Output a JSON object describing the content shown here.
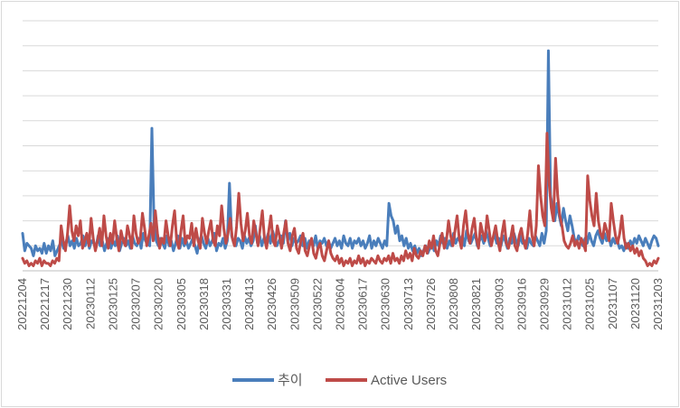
{
  "chart_data": {
    "type": "line",
    "title": "",
    "xlabel": "",
    "ylabel": "",
    "grid": true,
    "legend_position": "bottom",
    "x_tick_labels": [
      "20221204",
      "20221217",
      "20221230",
      "20230112",
      "20230125",
      "20230207",
      "20230220",
      "20230305",
      "20230318",
      "20230331",
      "20230413",
      "20230426",
      "20230509",
      "20230522",
      "20230604",
      "20230617",
      "20230630",
      "20230713",
      "20230726",
      "20230808",
      "20230821",
      "20230903",
      "20230916",
      "20230929",
      "20231012",
      "20231025",
      "20231107",
      "20231120",
      "20231203"
    ],
    "ylim": [
      0,
      100
    ],
    "gridline_count": 10,
    "series": [
      {
        "name": "추이",
        "color": "#4a7ebb",
        "values": [
          15,
          8,
          11,
          10,
          9,
          6,
          10,
          8,
          9,
          7,
          11,
          7,
          10,
          8,
          12,
          6,
          8,
          10,
          12,
          9,
          11,
          14,
          10,
          12,
          9,
          13,
          10,
          11,
          14,
          10,
          13,
          9,
          12,
          11,
          9,
          14,
          10,
          12,
          8,
          11,
          13,
          9,
          12,
          10,
          14,
          8,
          11,
          13,
          10,
          12,
          9,
          14,
          11,
          10,
          13,
          9,
          15,
          12,
          11,
          10,
          57,
          18,
          12,
          10,
          13,
          11,
          9,
          14,
          10,
          12,
          8,
          11,
          14,
          9,
          13,
          10,
          12,
          9,
          11,
          13,
          10,
          7,
          12,
          14,
          11,
          9,
          13,
          10,
          12,
          15,
          8,
          11,
          10,
          13,
          9,
          12,
          35,
          14,
          11,
          10,
          13,
          12,
          9,
          14,
          11,
          13,
          10,
          12,
          18,
          11,
          14,
          10,
          13,
          12,
          15,
          11,
          16,
          13,
          10,
          12,
          14,
          11,
          20,
          12,
          15,
          10,
          13,
          11,
          12,
          14,
          10,
          13,
          9,
          12,
          11,
          10,
          14,
          9,
          12,
          11,
          13,
          10,
          12,
          9,
          11,
          13,
          10,
          12,
          9,
          14,
          11,
          10,
          13,
          9,
          12,
          11,
          13,
          10,
          12,
          9,
          11,
          14,
          9,
          12,
          10,
          13,
          11,
          9,
          12,
          10,
          27,
          22,
          20,
          15,
          18,
          12,
          14,
          10,
          13,
          9,
          11,
          8,
          10,
          7,
          9,
          6,
          8,
          10,
          7,
          9,
          11,
          8,
          12,
          10,
          14,
          11,
          13,
          9,
          12,
          10,
          15,
          11,
          13,
          12,
          14,
          10,
          16,
          12,
          11,
          13,
          15,
          10,
          12,
          14,
          11,
          16,
          13,
          10,
          12,
          15,
          11,
          13,
          10,
          14,
          12,
          9,
          13,
          11,
          15,
          12,
          10,
          14,
          11,
          12,
          9,
          13,
          11,
          10,
          14,
          12,
          10,
          15,
          11,
          16,
          88,
          30,
          25,
          20,
          27,
          22,
          18,
          25,
          20,
          16,
          22,
          18,
          13,
          11,
          14,
          12,
          10,
          13,
          11,
          15,
          12,
          10,
          14,
          16,
          13,
          11,
          15,
          12,
          14,
          10,
          13,
          11,
          12,
          9,
          10,
          8,
          11,
          9,
          12,
          10,
          13,
          11,
          14,
          12,
          10,
          13,
          11,
          9,
          12,
          14,
          13,
          10
        ]
      },
      {
        "name": "Active Users",
        "color": "#be4b48",
        "values": [
          5,
          3,
          4,
          2,
          3,
          2,
          4,
          3,
          5,
          2,
          4,
          3,
          3,
          2,
          4,
          3,
          5,
          4,
          18,
          12,
          8,
          15,
          26,
          16,
          12,
          18,
          14,
          20,
          9,
          12,
          15,
          10,
          21,
          13,
          8,
          12,
          17,
          10,
          22,
          14,
          9,
          15,
          11,
          20,
          13,
          8,
          16,
          12,
          10,
          18,
          14,
          9,
          22,
          15,
          11,
          13,
          23,
          17,
          10,
          14,
          19,
          12,
          24,
          15,
          9,
          13,
          11,
          20,
          14,
          10,
          18,
          24,
          12,
          9,
          16,
          22,
          11,
          14,
          13,
          19,
          10,
          17,
          12,
          9,
          21,
          15,
          11,
          16,
          20,
          12,
          10,
          18,
          14,
          26,
          17,
          11,
          15,
          21,
          13,
          10,
          18,
          31,
          19,
          12,
          16,
          23,
          14,
          11,
          20,
          15,
          10,
          17,
          24,
          13,
          9,
          16,
          22,
          12,
          10,
          18,
          14,
          9,
          15,
          20,
          11,
          8,
          14,
          17,
          9,
          7,
          12,
          15,
          8,
          6,
          10,
          13,
          7,
          5,
          9,
          11,
          6,
          4,
          8,
          12,
          7,
          5,
          4,
          6,
          3,
          5,
          2,
          4,
          3,
          5,
          2,
          4,
          3,
          6,
          3,
          5,
          2,
          4,
          3,
          5,
          4,
          3,
          6,
          4,
          3,
          5,
          4,
          6,
          3,
          7,
          4,
          5,
          3,
          6,
          4,
          8,
          5,
          7,
          4,
          9,
          6,
          5,
          8,
          6,
          10,
          7,
          12,
          9,
          14,
          8,
          6,
          11,
          15,
          9,
          12,
          20,
          14,
          10,
          16,
          22,
          13,
          9,
          18,
          24,
          15,
          11,
          17,
          21,
          13,
          9,
          19,
          15,
          12,
          22,
          16,
          10,
          14,
          18,
          12,
          8,
          15,
          20,
          11,
          9,
          13,
          18,
          10,
          8,
          14,
          17,
          12,
          9,
          15,
          24,
          14,
          10,
          18,
          42,
          30,
          22,
          18,
          55,
          35,
          25,
          20,
          45,
          30,
          22,
          18,
          12,
          10,
          9,
          11,
          14,
          10,
          12,
          9,
          13,
          11,
          8,
          38,
          28,
          22,
          18,
          31,
          20,
          15,
          13,
          19,
          16,
          12,
          27,
          20,
          14,
          11,
          15,
          22,
          13,
          9,
          11,
          8,
          10,
          7,
          9,
          6,
          8,
          5,
          4,
          2,
          3,
          2,
          4,
          3,
          5
        ]
      }
    ]
  }
}
